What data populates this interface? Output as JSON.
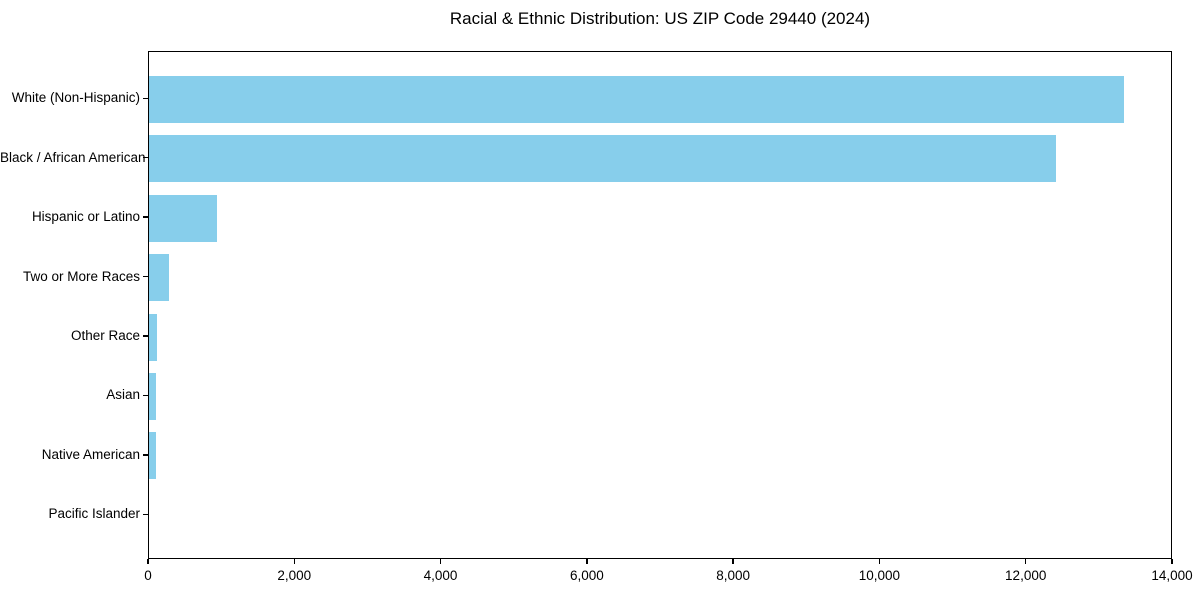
{
  "chart_data": {
    "type": "bar",
    "orientation": "horizontal",
    "title": "Racial & Ethnic Distribution: US ZIP Code 29440 (2024)",
    "xlabel": "",
    "ylabel": "",
    "categories": [
      "White (Non-Hispanic)",
      "Black / African American",
      "Hispanic or Latino",
      "Two or More Races",
      "Other Race",
      "Asian",
      "Native American",
      "Pacific Islander"
    ],
    "values": [
      13350,
      12420,
      930,
      275,
      115,
      90,
      100,
      0
    ],
    "xlim": [
      0,
      14000
    ],
    "x_ticks": [
      0,
      2000,
      4000,
      6000,
      8000,
      10000,
      12000,
      14000
    ],
    "x_tick_labels": [
      "0",
      "2,000",
      "4,000",
      "6,000",
      "8,000",
      "10,000",
      "12,000",
      "14,000"
    ],
    "grid": false,
    "legend_position": "none",
    "bar_color": "#87CEEB",
    "axis_color": "#000000",
    "text_color": "#000000",
    "background_color": "#FFFFFF"
  }
}
